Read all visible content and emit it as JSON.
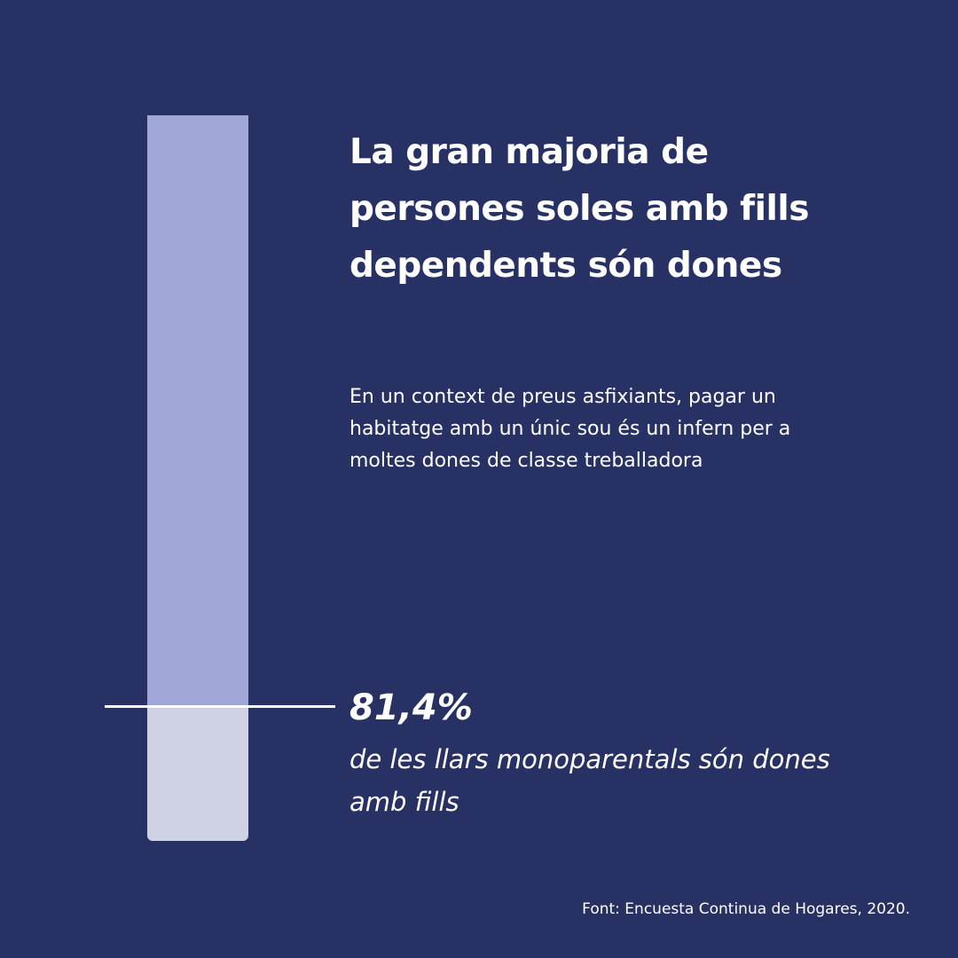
{
  "title": "La gran majoria de persones soles amb fills dependents són dones",
  "subtitle": "En un context de preus asfixiants, pagar un habitatge amb un únic sou és un infern per a moltes dones de classe treballadora",
  "stat": {
    "value_label": "81,4%",
    "description": "de les llars monoparentals són dones amb fills"
  },
  "source": "Font: Encuesta Continua de Hogares, 2020.",
  "colors": {
    "background": "#283163",
    "bar_highlight": "#a0a6d6",
    "bar_remainder": "#cfd2e2",
    "text": "#ffffff"
  },
  "chart_data": {
    "type": "bar",
    "categories": [
      ""
    ],
    "values": [
      81.4
    ],
    "ylim": [
      0,
      100
    ],
    "orientation": "vertical",
    "grid": false,
    "data_labels": [
      "81,4%"
    ]
  }
}
